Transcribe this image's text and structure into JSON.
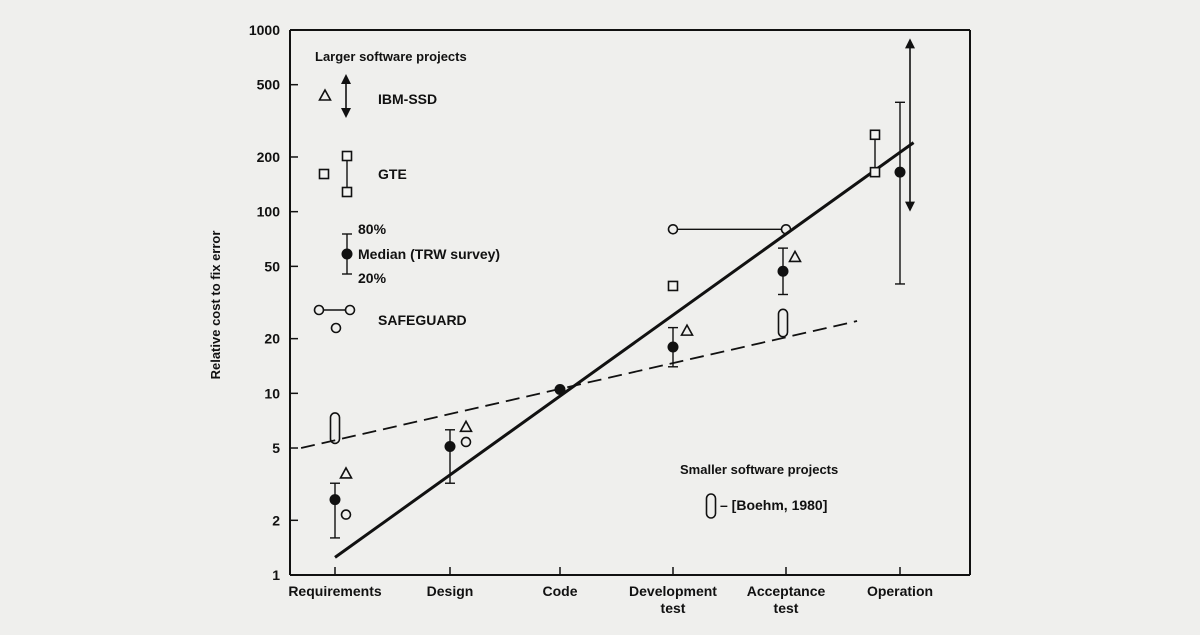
{
  "chart_data": {
    "type": "scatter",
    "title": "",
    "xlabel": "",
    "ylabel": "Relative cost to fix error",
    "yscale": "log",
    "ylim": [
      1,
      1000
    ],
    "yticks": [
      1,
      2,
      5,
      10,
      20,
      50,
      100,
      200,
      500,
      1000
    ],
    "ytick_labels": [
      "1",
      "2",
      "5",
      "10",
      "20",
      "50",
      "100",
      "200",
      "500",
      "1000"
    ],
    "categories": [
      [
        "Requirements"
      ],
      [
        "Design"
      ],
      [
        "Code"
      ],
      [
        "Development",
        "test"
      ],
      [
        "Acceptance",
        "test"
      ],
      [
        "Operation"
      ]
    ],
    "series": [
      {
        "name": "Median (TRW survey)",
        "marker": "filled-circle",
        "points": [
          {
            "x": "Requirements",
            "y": 2.6,
            "low": 1.6,
            "high": 3.2
          },
          {
            "x": "Design",
            "y": 5.1,
            "low": 3.2,
            "high": 6.3
          },
          {
            "x": "Code",
            "y": 10.5
          },
          {
            "x": "Development test",
            "y": 18,
            "low": 14,
            "high": 23
          },
          {
            "x": "Acceptance test",
            "y": 47,
            "low": 35,
            "high": 63
          },
          {
            "x": "Operation",
            "y": 165,
            "low": 40,
            "high": 400
          }
        ]
      },
      {
        "name": "IBM-SSD",
        "marker": "triangle",
        "points": [
          {
            "x": "Requirements",
            "y": 3.6
          },
          {
            "x": "Design",
            "y": 6.5
          },
          {
            "x": "Development test",
            "y": 22
          },
          {
            "x": "Acceptance test",
            "y": 56
          },
          {
            "x": "Operation",
            "low": 100,
            "high": 900
          }
        ]
      },
      {
        "name": "GTE",
        "marker": "square",
        "points": [
          {
            "x": "Development test",
            "y": 39
          },
          {
            "x": "Operation",
            "low": 165,
            "high": 265
          }
        ]
      },
      {
        "name": "SAFEGUARD",
        "marker": "open-circle",
        "points": [
          {
            "x": "Requirements",
            "y": 2.15
          },
          {
            "x": "Design",
            "y": 5.4
          },
          {
            "x": "Development test",
            "y": 80
          },
          {
            "x": "Acceptance test",
            "y": 80
          }
        ]
      },
      {
        "name": "[Boehm, 1980]",
        "marker": "open-oval",
        "points": [
          {
            "x": "Requirements",
            "low": 5.3,
            "high": 7.8
          },
          {
            "x": "Acceptance test",
            "low": 20.5,
            "high": 29
          }
        ]
      }
    ],
    "trendlines": [
      {
        "style": "solid",
        "points": [
          {
            "x": 0,
            "y": 1.25
          },
          {
            "x": 5.12,
            "y": 240
          }
        ]
      },
      {
        "style": "dashed",
        "points": [
          {
            "x": -0.3,
            "y": 5.0
          },
          {
            "x": 4.62,
            "y": 25
          }
        ]
      }
    ],
    "legend": {
      "larger_title": "Larger software projects",
      "smaller_title": "Smaller software projects",
      "ibm": "IBM-SSD",
      "gte": "GTE",
      "p80": "80%",
      "median": "Median (TRW survey)",
      "p20": "20%",
      "safeguard": "SAFEGUARD",
      "boehm": "– [Boehm, 1980]"
    },
    "grid": false
  }
}
